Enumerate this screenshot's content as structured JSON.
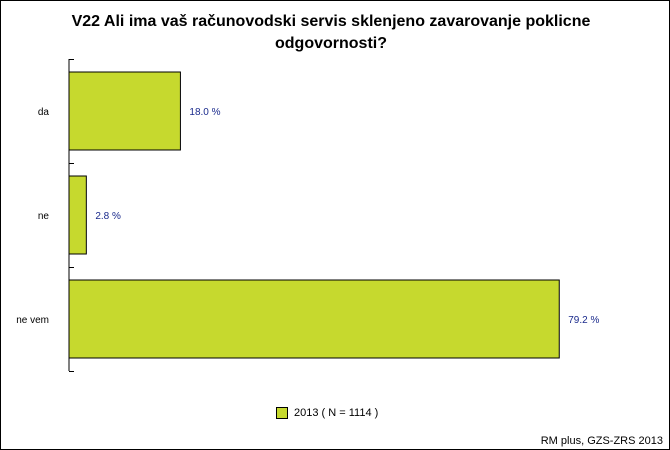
{
  "chart_data": {
    "type": "bar",
    "orientation": "horizontal",
    "title": "V22 Ali ima vaš računovodski servis sklenjeno zavarovanje poklicne odgovornosti?",
    "categories": [
      "da",
      "ne",
      "ne vem"
    ],
    "series": [
      {
        "name": "2013 ( N = 1114 )",
        "values": [
          18.0,
          2.8,
          79.2
        ]
      }
    ],
    "value_labels": [
      "18.0 %",
      "2.8 %",
      "79.2 %"
    ],
    "xlim": [
      0,
      100
    ],
    "grid": false,
    "legend_position": "bottom",
    "bar_color": "#c6d92e",
    "label_color": "#1a2a8c"
  },
  "legend": {
    "text": "2013 ( N = 1114 )"
  },
  "footer": {
    "text": "RM plus, GZS-ZRS 2013"
  }
}
